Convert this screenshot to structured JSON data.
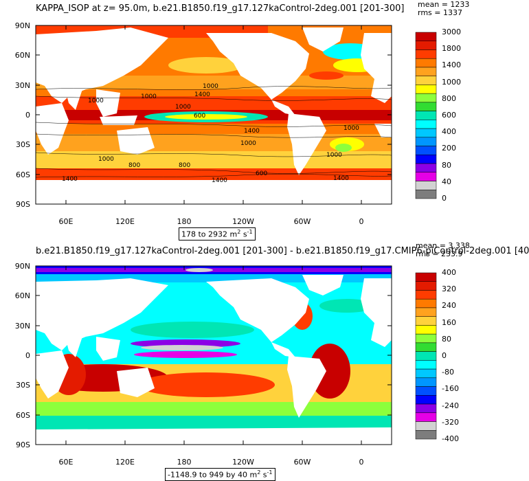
{
  "panel1": {
    "title": "KAPPA_ISOP at z=  95.0m, b.e21.B1850.f19_g17.127kaControl-2deg.001 [201-300]",
    "mean_text": "mean = 1233",
    "rms_text": "rms = 1337",
    "range_main": "178 to 2932 m",
    "range_sup": "2",
    "range_tail": " s",
    "range_tail_sup": "-1",
    "contour_labels": [
      "1000",
      "1000",
      "1000",
      "1000",
      "1000",
      "1400",
      "1400",
      "1400",
      "600",
      "600",
      "800",
      "800",
      "1000",
      "1000",
      "1000",
      "1400",
      "1400"
    ],
    "colorbar_labels": [
      "3000",
      "1800",
      "1400",
      "1000",
      "800",
      "600",
      "400",
      "200",
      "80",
      "40",
      "0"
    ],
    "colorbar_colors": [
      "#c80000",
      "#e41b00",
      "#ff3c00",
      "#ff7a00",
      "#ffa21e",
      "#ffd23c",
      "#ffff00",
      "#8cff3c",
      "#32dc32",
      "#00e6b4",
      "#00ffff",
      "#00c8ff",
      "#0096ff",
      "#0050ff",
      "#0000ff",
      "#8c00e6",
      "#e600e6",
      "#d2d2d2",
      "#7d7d7d"
    ]
  },
  "panel2": {
    "title": "b.e21.B1850.f19_g17.127kaControl-2deg.001 [201-300] - b.e21.B1850.f19_g17.CMIP6-piControl-2deg.001 [40",
    "mean_text": "mean = 3.338",
    "rms_text": "rms = 233.9",
    "range_main": "-1148.9 to 949 by 40 m",
    "range_sup": "2",
    "range_tail": " s",
    "range_tail_sup": "-1",
    "colorbar_labels": [
      "400",
      "320",
      "240",
      "160",
      "80",
      "0",
      "-80",
      "-160",
      "-240",
      "-320",
      "-400"
    ],
    "colorbar_colors": [
      "#c80000",
      "#e41b00",
      "#ff3c00",
      "#ff7a00",
      "#ffa21e",
      "#ffd23c",
      "#ffff00",
      "#8cff3c",
      "#32dc32",
      "#00e6b4",
      "#00ffff",
      "#00c8ff",
      "#0096ff",
      "#0050ff",
      "#0000ff",
      "#8c00e6",
      "#e600e6",
      "#d2d2d2",
      "#7d7d7d"
    ]
  },
  "lat_labels": [
    "90N",
    "60N",
    "30N",
    "0",
    "30S",
    "60S",
    "90S"
  ],
  "lon_labels": [
    "60E",
    "120E",
    "180",
    "120W",
    "60W",
    "0"
  ]
}
